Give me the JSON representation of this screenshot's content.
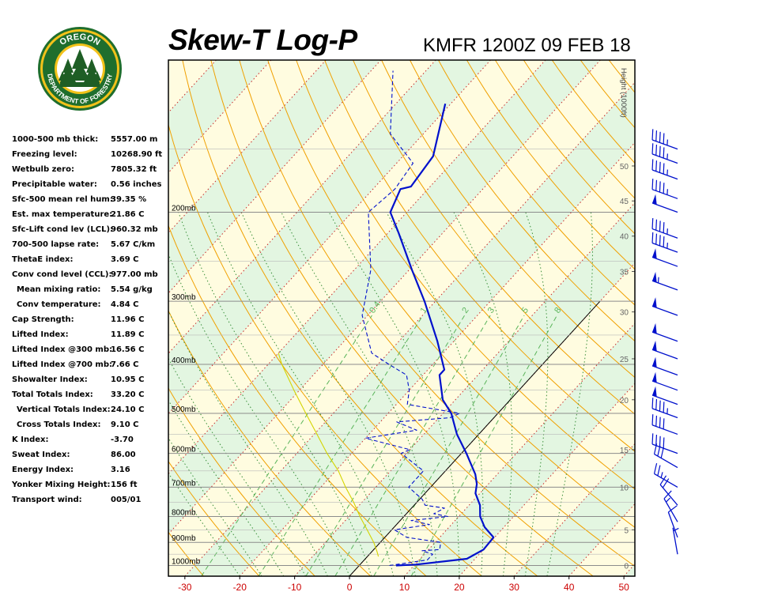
{
  "header": {
    "title": "Skew-T Log-P",
    "station": "KMFR 1200Z 09 FEB 18"
  },
  "logo": {
    "top_text": "OREGON",
    "bottom_text": "DEPARTMENT OF FORESTRY",
    "colors": {
      "ring": "#1f6e2d",
      "gold": "#f2c21a",
      "tree": "#1e5e25"
    }
  },
  "indices": [
    {
      "label": "1000-500 mb thick:",
      "value": "5557.00 m"
    },
    {
      "label": "Freezing level:",
      "value": "10268.90 ft"
    },
    {
      "label": "Wetbulb zero:",
      "value": "7805.32 ft"
    },
    {
      "label": "Precipitable water:",
      "value": "0.56 inches"
    },
    {
      "label": "Sfc-500 mean rel hum:",
      "value": "39.35 %"
    },
    {
      "label": "Est. max temperature:",
      "value": "21.86 C"
    },
    {
      "label": "Sfc-Lift cond lev (LCL):",
      "value": "960.32 mb"
    },
    {
      "label": "700-500 lapse rate:",
      "value": "5.67 C/km"
    },
    {
      "label": "ThetaE index:",
      "value": "3.69 C"
    },
    {
      "label": "Conv cond level (CCL):",
      "value": "977.00 mb"
    },
    {
      "label": "Mean mixing ratio:",
      "value": "5.54 g/kg",
      "indent": true
    },
    {
      "label": "Conv temperature:",
      "value": "4.84 C",
      "indent": true
    },
    {
      "label": "Cap Strength:",
      "value": "11.96 C"
    },
    {
      "label": "Lifted Index:",
      "value": "11.89 C"
    },
    {
      "label": "Lifted Index @300 mb:",
      "value": "16.56 C"
    },
    {
      "label": "Lifted Index @700 mb:",
      "value": "7.66 C"
    },
    {
      "label": "Showalter Index:",
      "value": "10.95 C"
    },
    {
      "label": "Total Totals Index:",
      "value": "33.20 C"
    },
    {
      "label": "Vertical Totals Index:",
      "value": "24.10 C",
      "indent": true
    },
    {
      "label": "Cross Totals Index:",
      "value": "9.10 C",
      "indent": true
    },
    {
      "label": "K Index:",
      "value": "-3.70"
    },
    {
      "label": "Sweat Index:",
      "value": "86.00"
    },
    {
      "label": "Energy Index:",
      "value": "3.16"
    },
    {
      "label": "Yonker Mixing Height:",
      "value": "156 ft"
    },
    {
      "label": "Transport wind:",
      "value": "005/01"
    }
  ],
  "chart_data": {
    "type": "skew-t log-p",
    "x_unit": "C",
    "x_ticks": [
      -30,
      -20,
      -10,
      0,
      10,
      20,
      30,
      40,
      50
    ],
    "xlim": [
      -33,
      52
    ],
    "pressure_range_mb": [
      1050,
      100
    ],
    "pressure_labels": [
      {
        "p": 200,
        "text": "200mb"
      },
      {
        "p": 300,
        "text": "300mb"
      },
      {
        "p": 400,
        "text": "400mb"
      },
      {
        "p": 500,
        "text": "500mb"
      },
      {
        "p": 600,
        "text": "600mb"
      },
      {
        "p": 700,
        "text": "700mb"
      },
      {
        "p": 800,
        "text": "800mb"
      },
      {
        "p": 900,
        "text": "900mb"
      },
      {
        "p": 1000,
        "text": "1000mb"
      }
    ],
    "height_axis": {
      "title": "Height (1000ft)",
      "ticks": [
        {
          "p": 1000,
          "label": "0"
        },
        {
          "p": 850,
          "label": "5"
        },
        {
          "p": 700,
          "label": "10"
        },
        {
          "p": 590,
          "label": "15"
        },
        {
          "p": 470,
          "label": "20"
        },
        {
          "p": 390,
          "label": "25"
        },
        {
          "p": 315,
          "label": "30"
        },
        {
          "p": 262,
          "label": "35"
        },
        {
          "p": 223,
          "label": "40"
        },
        {
          "p": 190,
          "label": "45"
        },
        {
          "p": 162,
          "label": "50"
        }
      ]
    },
    "mixing_ratio_labels": [
      "0.4",
      "1",
      "2",
      "3",
      "5",
      "8"
    ],
    "series": [
      {
        "kind": "temperature",
        "color": "#0010cc",
        "points": [
          [
            1000,
            6.7
          ],
          [
            996,
            10.2
          ],
          [
            970,
            18.5
          ],
          [
            930,
            20.0
          ],
          [
            880,
            19.8
          ],
          [
            840,
            16.5
          ],
          [
            800,
            13.9
          ],
          [
            760,
            12.0
          ],
          [
            720,
            9.2
          ],
          [
            690,
            7.9
          ],
          [
            660,
            6.0
          ],
          [
            600,
            0.9
          ],
          [
            550,
            -4.0
          ],
          [
            500,
            -8.5
          ],
          [
            470,
            -12.3
          ],
          [
            420,
            -17.0
          ],
          [
            410,
            -17.0
          ],
          [
            360,
            -23.0
          ],
          [
            300,
            -32.0
          ],
          [
            260,
            -39.5
          ],
          [
            220,
            -48.0
          ],
          [
            200,
            -53.0
          ],
          [
            180,
            -55.0
          ],
          [
            178,
            -53.5
          ],
          [
            155,
            -54.5
          ],
          [
            122,
            -61.0
          ]
        ]
      },
      {
        "kind": "dewpoint",
        "color": "#0010cc",
        "dashed": true,
        "points": [
          [
            1000,
            5.5
          ],
          [
            975,
            11.5
          ],
          [
            950,
            11.5
          ],
          [
            935,
            9.0
          ],
          [
            930,
            12.0
          ],
          [
            900,
            11.0
          ],
          [
            880,
            4.0
          ],
          [
            850,
            0.5
          ],
          [
            830,
            6.0
          ],
          [
            815,
            2.0
          ],
          [
            800,
            8.0
          ],
          [
            790,
            5.0
          ],
          [
            770,
            6.0
          ],
          [
            760,
            2.0
          ],
          [
            740,
            0.5
          ],
          [
            700,
            -4.0
          ],
          [
            650,
            -4.0
          ],
          [
            600,
            -11.0
          ],
          [
            590,
            -10.0
          ],
          [
            560,
            -20.0
          ],
          [
            540,
            -12.0
          ],
          [
            520,
            -17.0
          ],
          [
            510,
            -8.0
          ],
          [
            500,
            -7.0
          ],
          [
            480,
            -18.0
          ],
          [
            450,
            -20.0
          ],
          [
            420,
            -23.0
          ],
          [
            400,
            -28.0
          ],
          [
            380,
            -33.0
          ],
          [
            320,
            -41.0
          ],
          [
            260,
            -47.0
          ],
          [
            200,
            -57.0
          ],
          [
            180,
            -56.0
          ],
          [
            160,
            -57.0
          ],
          [
            140,
            -66.0
          ],
          [
            105,
            -76.0
          ]
        ]
      },
      {
        "kind": "parcel",
        "color": "#d4d400",
        "points": [
          [
            960,
            2.0
          ],
          [
            940,
            1.0
          ],
          [
            900,
            -1.2
          ],
          [
            850,
            -4.5
          ],
          [
            800,
            -8.0
          ],
          [
            750,
            -11.5
          ],
          [
            700,
            -15.5
          ],
          [
            650,
            -19.5
          ],
          [
            600,
            -24.5
          ],
          [
            550,
            -29.5
          ],
          [
            500,
            -35.0
          ],
          [
            450,
            -41.0
          ],
          [
            400,
            -47.5
          ],
          [
            380,
            -50.0
          ]
        ]
      }
    ],
    "wind_barbs": [
      {
        "p": 150,
        "dir": 290,
        "speed": 45
      },
      {
        "p": 160,
        "dir": 290,
        "speed": 45
      },
      {
        "p": 172,
        "dir": 290,
        "speed": 45
      },
      {
        "p": 188,
        "dir": 290,
        "speed": 45
      },
      {
        "p": 200,
        "dir": 290,
        "speed": 50
      },
      {
        "p": 225,
        "dir": 290,
        "speed": 45
      },
      {
        "p": 240,
        "dir": 290,
        "speed": 45
      },
      {
        "p": 256,
        "dir": 290,
        "speed": 50
      },
      {
        "p": 285,
        "dir": 290,
        "speed": 55
      },
      {
        "p": 320,
        "dir": 290,
        "speed": 50
      },
      {
        "p": 360,
        "dir": 290,
        "speed": 50
      },
      {
        "p": 390,
        "dir": 290,
        "speed": 50
      },
      {
        "p": 420,
        "dir": 290,
        "speed": 50
      },
      {
        "p": 450,
        "dir": 290,
        "speed": 50
      },
      {
        "p": 480,
        "dir": 290,
        "speed": 50
      },
      {
        "p": 510,
        "dir": 290,
        "speed": 45
      },
      {
        "p": 550,
        "dir": 290,
        "speed": 40
      },
      {
        "p": 600,
        "dir": 290,
        "speed": 40
      },
      {
        "p": 640,
        "dir": 300,
        "speed": 30
      },
      {
        "p": 700,
        "dir": 300,
        "speed": 25
      },
      {
        "p": 760,
        "dir": 320,
        "speed": 20
      },
      {
        "p": 820,
        "dir": 330,
        "speed": 15
      },
      {
        "p": 880,
        "dir": 340,
        "speed": 10
      },
      {
        "p": 950,
        "dir": 350,
        "speed": 5
      }
    ],
    "colors": {
      "background": "#fffce0",
      "band_alt": "#e3f6e1",
      "isobar": "#8c8c8c",
      "dry_adiabat": "#f0a000",
      "moist_adiabat": "#3a8f3a",
      "isotherm": "#c82828",
      "mixing_ratio": "#5ab45a",
      "zero_isotherm": "#000000",
      "axis_text": "#cc0000",
      "trace": "#0010cc",
      "parcel": "#d4d400"
    }
  }
}
